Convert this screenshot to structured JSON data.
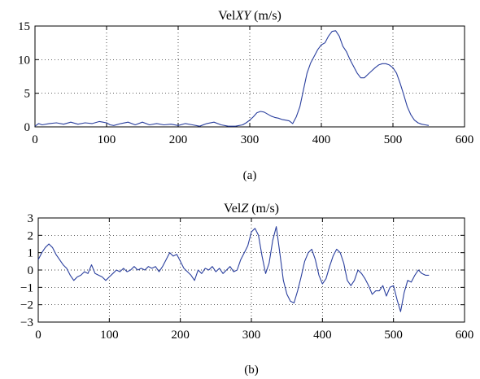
{
  "chart_data": [
    {
      "type": "line",
      "panel": "a",
      "title": "VelXY (m/s)",
      "title_parts": [
        "Vel",
        "XY",
        " (m/s)"
      ],
      "caption": "(a)",
      "xlabel": "",
      "ylabel": "",
      "xlim": [
        0,
        600
      ],
      "ylim": [
        0,
        15
      ],
      "xticks": [
        0,
        100,
        200,
        300,
        400,
        500,
        600
      ],
      "yticks": [
        0,
        5,
        10,
        15
      ],
      "grid": true,
      "line_color": "#2a3f9e",
      "series": [
        {
          "x": [
            0,
            5,
            10,
            20,
            30,
            40,
            50,
            60,
            70,
            80,
            90,
            100,
            105,
            110,
            120,
            130,
            140,
            150,
            160,
            170,
            180,
            190,
            200,
            210,
            220,
            230,
            240,
            250,
            260,
            270,
            280,
            290,
            295,
            300,
            305,
            310,
            315,
            320,
            325,
            330,
            335,
            340,
            345,
            350,
            355,
            360,
            365,
            370,
            375,
            380,
            385,
            390,
            395,
            400,
            405,
            410,
            415,
            420,
            425,
            430,
            435,
            440,
            445,
            450,
            455,
            460,
            465,
            470,
            475,
            480,
            485,
            490,
            495,
            500,
            505,
            510,
            515,
            520,
            525,
            530,
            535,
            540,
            545,
            550
          ],
          "y": [
            0.1,
            0.5,
            0.3,
            0.5,
            0.6,
            0.4,
            0.7,
            0.4,
            0.6,
            0.5,
            0.8,
            0.6,
            0.3,
            0.2,
            0.5,
            0.7,
            0.3,
            0.7,
            0.3,
            0.5,
            0.3,
            0.4,
            0.2,
            0.5,
            0.3,
            0.1,
            0.5,
            0.7,
            0.3,
            0.1,
            0.1,
            0.3,
            0.6,
            1.0,
            1.5,
            2.1,
            2.3,
            2.2,
            1.9,
            1.6,
            1.4,
            1.3,
            1.1,
            1.0,
            0.9,
            0.5,
            1.5,
            3.0,
            5.5,
            8.0,
            9.5,
            10.5,
            11.5,
            12.2,
            12.5,
            13.5,
            14.2,
            14.3,
            13.5,
            12.0,
            11.2,
            10.0,
            9.0,
            8.0,
            7.3,
            7.3,
            7.8,
            8.3,
            8.8,
            9.2,
            9.4,
            9.4,
            9.2,
            8.8,
            8.0,
            6.5,
            4.8,
            3.0,
            1.8,
            1.0,
            0.6,
            0.4,
            0.3,
            0.2
          ]
        }
      ]
    },
    {
      "type": "line",
      "panel": "b",
      "title": "VelZ (m/s)",
      "title_parts": [
        "Vel",
        "Z",
        " (m/s)"
      ],
      "caption": "(b)",
      "xlabel": "",
      "ylabel": "",
      "xlim": [
        0,
        600
      ],
      "ylim": [
        -3,
        3
      ],
      "xticks": [
        0,
        100,
        200,
        300,
        400,
        500,
        600
      ],
      "yticks": [
        -3,
        -2,
        -1,
        0,
        1,
        2,
        3
      ],
      "grid": true,
      "line_color": "#2a3f9e",
      "series": [
        {
          "x": [
            0,
            5,
            10,
            15,
            20,
            25,
            30,
            35,
            40,
            45,
            50,
            55,
            60,
            65,
            70,
            75,
            80,
            85,
            90,
            95,
            100,
            105,
            110,
            115,
            120,
            125,
            130,
            135,
            140,
            145,
            150,
            155,
            160,
            165,
            170,
            175,
            180,
            185,
            190,
            195,
            200,
            205,
            210,
            215,
            220,
            225,
            230,
            235,
            240,
            245,
            250,
            255,
            260,
            265,
            270,
            275,
            280,
            285,
            290,
            295,
            300,
            305,
            310,
            315,
            320,
            325,
            330,
            335,
            340,
            345,
            350,
            355,
            360,
            365,
            370,
            375,
            380,
            385,
            390,
            395,
            400,
            405,
            410,
            415,
            420,
            425,
            430,
            435,
            440,
            445,
            450,
            455,
            460,
            465,
            470,
            475,
            480,
            485,
            490,
            495,
            500,
            505,
            510,
            515,
            520,
            525,
            530,
            535,
            540,
            545,
            550
          ],
          "y": [
            0.6,
            1.0,
            1.3,
            1.5,
            1.3,
            0.9,
            0.6,
            0.3,
            0.1,
            -0.3,
            -0.6,
            -0.4,
            -0.3,
            -0.1,
            -0.2,
            0.3,
            -0.2,
            -0.3,
            -0.4,
            -0.6,
            -0.4,
            -0.2,
            0.0,
            -0.1,
            0.1,
            -0.1,
            0.0,
            0.2,
            0.0,
            0.1,
            0.0,
            0.2,
            0.1,
            0.2,
            -0.1,
            0.2,
            0.6,
            1.0,
            0.8,
            0.9,
            0.5,
            0.1,
            -0.1,
            -0.3,
            -0.6,
            0.0,
            -0.2,
            0.1,
            0.0,
            0.2,
            -0.1,
            0.1,
            -0.2,
            0.0,
            0.2,
            -0.1,
            0.0,
            0.6,
            1.0,
            1.4,
            2.2,
            2.4,
            2.0,
            0.8,
            -0.2,
            0.4,
            1.7,
            2.5,
            1.0,
            -0.6,
            -1.4,
            -1.8,
            -1.9,
            -1.2,
            -0.4,
            0.5,
            1.0,
            1.2,
            0.6,
            -0.3,
            -0.8,
            -0.5,
            0.2,
            0.8,
            1.2,
            1.0,
            0.4,
            -0.6,
            -0.9,
            -0.6,
            0.0,
            -0.2,
            -0.5,
            -0.9,
            -1.4,
            -1.2,
            -1.2,
            -0.9,
            -1.5,
            -1.0,
            -0.9,
            -1.7,
            -2.4,
            -1.3,
            -0.6,
            -0.7,
            -0.3,
            0.0,
            -0.2,
            -0.3,
            -0.3
          ]
        }
      ]
    }
  ]
}
